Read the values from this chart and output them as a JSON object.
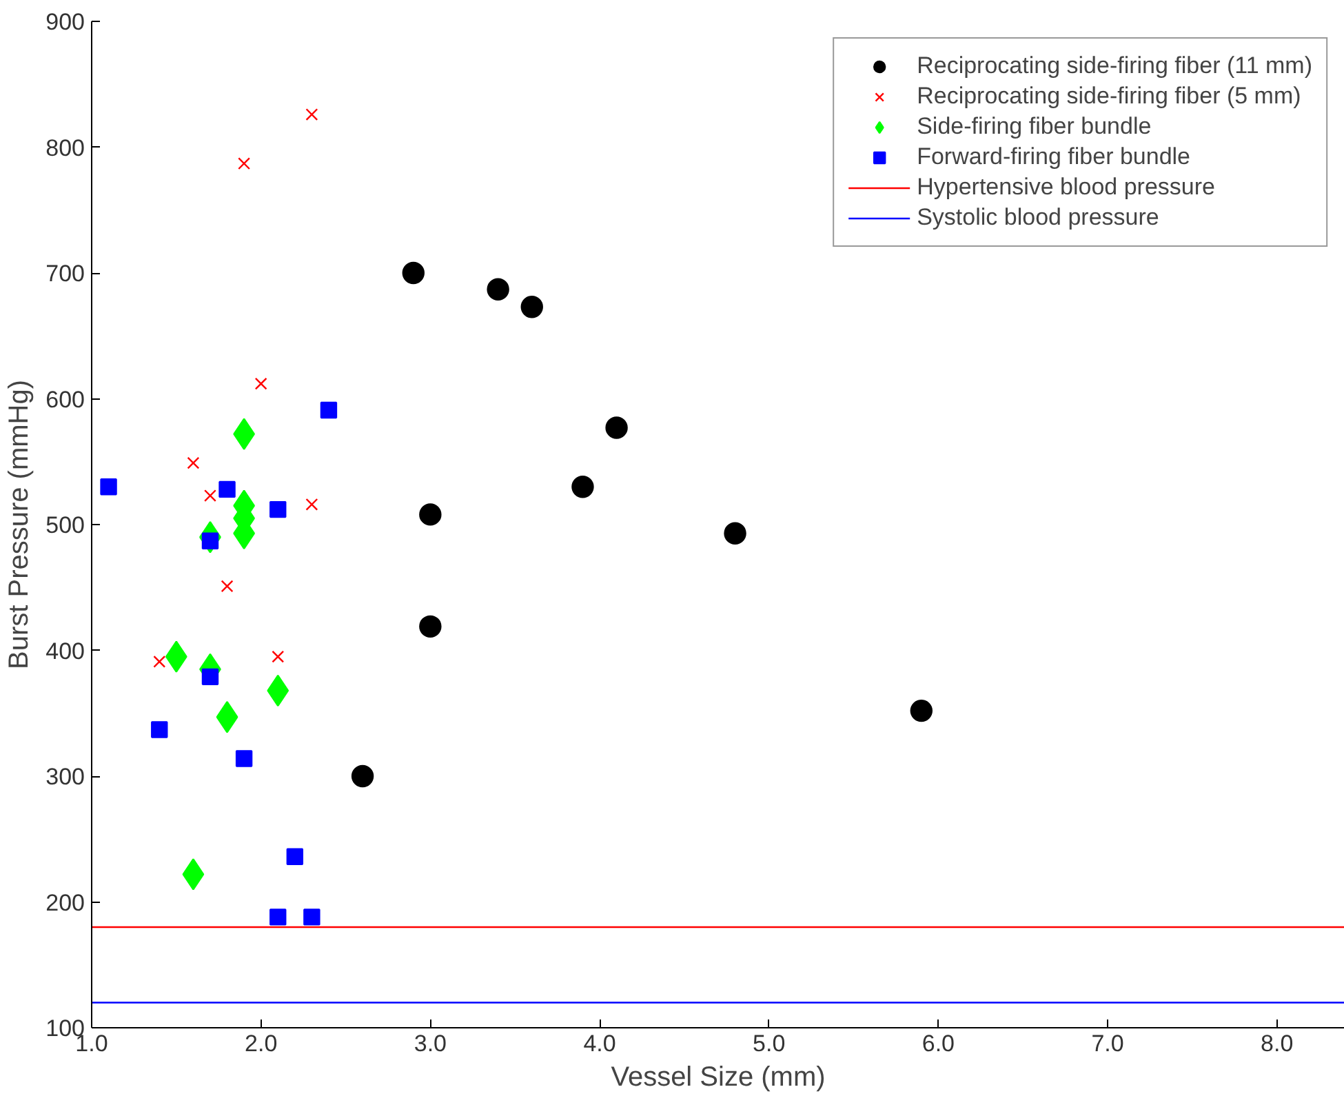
{
  "chart_data": {
    "type": "scatter",
    "xlabel": "Vessel Size (mm)",
    "ylabel": "Burst Pressure (mmHg)",
    "xlim": [
      1.0,
      8.4
    ],
    "ylim": [
      100,
      900
    ],
    "xticks": [
      {
        "value": 1,
        "label": "1.0"
      },
      {
        "value": 2,
        "label": "2.0"
      },
      {
        "value": 3,
        "label": "3.0"
      },
      {
        "value": 4,
        "label": "4.0"
      },
      {
        "value": 5,
        "label": "5.0"
      },
      {
        "value": 6,
        "label": "6.0"
      },
      {
        "value": 7,
        "label": "7.0"
      },
      {
        "value": 8,
        "label": "8.0"
      }
    ],
    "yticks": [
      100,
      200,
      300,
      400,
      500,
      600,
      700,
      800,
      900
    ],
    "grid": false,
    "legend": "top right",
    "series": [
      {
        "name": "Reciprocating side-firing fiber (11 mm)",
        "color": "#000000",
        "marker": "circle",
        "x": [
          2.9,
          3.4,
          3.6,
          4.1,
          3.9,
          3.0,
          4.8,
          3.0,
          5.9,
          2.6
        ],
        "values": [
          700,
          687,
          673,
          577,
          530,
          508,
          493,
          419,
          352,
          300
        ]
      },
      {
        "name": "Reciprocating side-firing fiber (5 mm)",
        "color": "#ff0000",
        "marker": "cross",
        "x": [
          2.3,
          1.9,
          2.0,
          1.6,
          1.7,
          2.3,
          1.8,
          2.1,
          1.4
        ],
        "values": [
          826,
          787,
          612,
          549,
          523,
          516,
          451,
          395,
          391
        ]
      },
      {
        "name": "Side-firing fiber bundle",
        "color": "#00ff00",
        "marker": "diamond",
        "x": [
          1.9,
          1.9,
          1.9,
          1.9,
          1.7,
          1.5,
          1.7,
          2.1,
          1.8,
          1.6
        ],
        "values": [
          572,
          515,
          505,
          493,
          490,
          395,
          385,
          368,
          347,
          222
        ]
      },
      {
        "name": "Forward-firing fiber bundle",
        "color": "#0000ff",
        "marker": "square",
        "x": [
          2.4,
          1.1,
          1.8,
          2.1,
          1.7,
          1.7,
          1.4,
          1.9,
          2.2,
          2.1,
          2.3
        ],
        "values": [
          591,
          530,
          528,
          512,
          487,
          379,
          337,
          314,
          236,
          188,
          188
        ]
      }
    ],
    "ref_lines": [
      {
        "axis": "y",
        "value": 180,
        "label": "Hypertensive blood pressure",
        "color": "#ff0000"
      },
      {
        "axis": "y",
        "value": 120,
        "label": "Systolic blood pressure",
        "color": "#0000ff"
      }
    ]
  }
}
